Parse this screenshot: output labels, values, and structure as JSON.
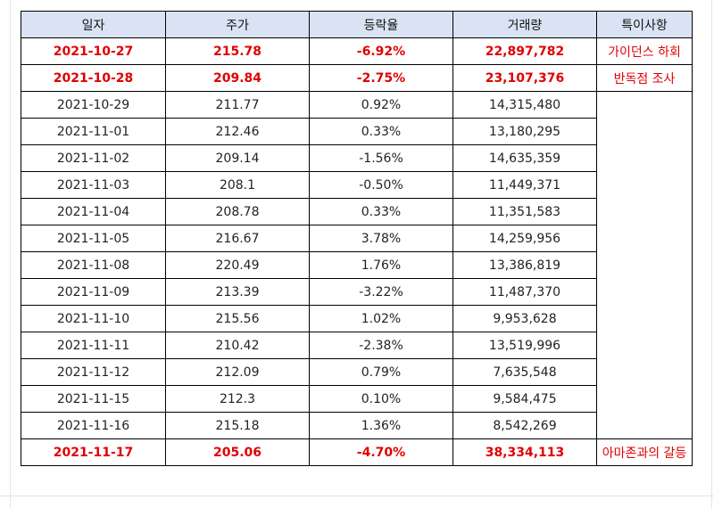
{
  "headers": [
    "일자",
    "주가",
    "등락율",
    "거래량",
    "특이사항"
  ],
  "rows": [
    {
      "date": "2021-10-27",
      "price": "215.78",
      "change": "-6.92%",
      "volume": "22,897,782",
      "note": "가이던스 하회",
      "highlight": true
    },
    {
      "date": "2021-10-28",
      "price": "209.84",
      "change": "-2.75%",
      "volume": "23,107,376",
      "note": "반독점 조사",
      "highlight": true
    },
    {
      "date": "2021-10-29",
      "price": "211.77",
      "change": "0.92%",
      "volume": "14,315,480",
      "note": "",
      "highlight": false
    },
    {
      "date": "2021-11-01",
      "price": "212.46",
      "change": "0.33%",
      "volume": "13,180,295",
      "note": "",
      "highlight": false
    },
    {
      "date": "2021-11-02",
      "price": "209.14",
      "change": "-1.56%",
      "volume": "14,635,359",
      "note": "",
      "highlight": false
    },
    {
      "date": "2021-11-03",
      "price": "208.1",
      "change": "-0.50%",
      "volume": "11,449,371",
      "note": "",
      "highlight": false
    },
    {
      "date": "2021-11-04",
      "price": "208.78",
      "change": "0.33%",
      "volume": "11,351,583",
      "note": "",
      "highlight": false
    },
    {
      "date": "2021-11-05",
      "price": "216.67",
      "change": "3.78%",
      "volume": "14,259,956",
      "note": "",
      "highlight": false
    },
    {
      "date": "2021-11-08",
      "price": "220.49",
      "change": "1.76%",
      "volume": "13,386,819",
      "note": "",
      "highlight": false
    },
    {
      "date": "2021-11-09",
      "price": "213.39",
      "change": "-3.22%",
      "volume": "11,487,370",
      "note": "",
      "highlight": false
    },
    {
      "date": "2021-11-10",
      "price": "215.56",
      "change": "1.02%",
      "volume": "9,953,628",
      "note": "",
      "highlight": false
    },
    {
      "date": "2021-11-11",
      "price": "210.42",
      "change": "-2.38%",
      "volume": "13,519,996",
      "note": "",
      "highlight": false
    },
    {
      "date": "2021-11-12",
      "price": "212.09",
      "change": "0.79%",
      "volume": "7,635,548",
      "note": "",
      "highlight": false
    },
    {
      "date": "2021-11-15",
      "price": "212.3",
      "change": "0.10%",
      "volume": "9,584,475",
      "note": "",
      "highlight": false
    },
    {
      "date": "2021-11-16",
      "price": "215.18",
      "change": "1.36%",
      "volume": "8,542,269",
      "note": "",
      "highlight": false
    },
    {
      "date": "2021-11-17",
      "price": "205.06",
      "change": "-4.70%",
      "volume": "38,334,113",
      "note": "아마존과의 갈등",
      "highlight": true
    }
  ],
  "colors": {
    "header_bg": "#dae3f3",
    "highlight_text": "#e00000",
    "border": "#000000"
  }
}
